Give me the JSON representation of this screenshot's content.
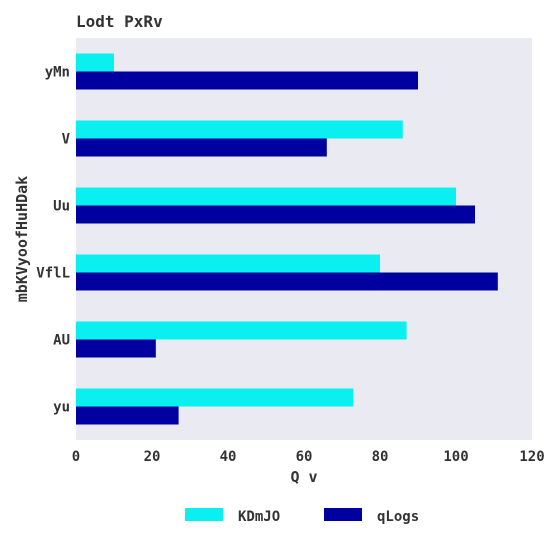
{
  "chart_data": {
    "type": "bar",
    "orientation": "horizontal",
    "title": "Lodt  PxRv",
    "xlabel": "Q v",
    "ylabel": "mbKVyoofHuHDak",
    "categories": [
      "yMn",
      "V",
      "Uu",
      "VflL",
      "AU",
      "yu"
    ],
    "series": [
      {
        "name": "KDmJO",
        "values": [
          10,
          86,
          100,
          80,
          87,
          73
        ],
        "color": "#0af0f0"
      },
      {
        "name": "qLogs",
        "values": [
          90,
          66,
          105,
          111,
          21,
          27
        ],
        "color": "#0000a0"
      }
    ],
    "xlim": [
      0,
      120
    ],
    "xticks": [
      0,
      20,
      40,
      60,
      80,
      100,
      120
    ],
    "grid": false,
    "legend_position": "bottom",
    "background_color": "#eaeaf2"
  }
}
